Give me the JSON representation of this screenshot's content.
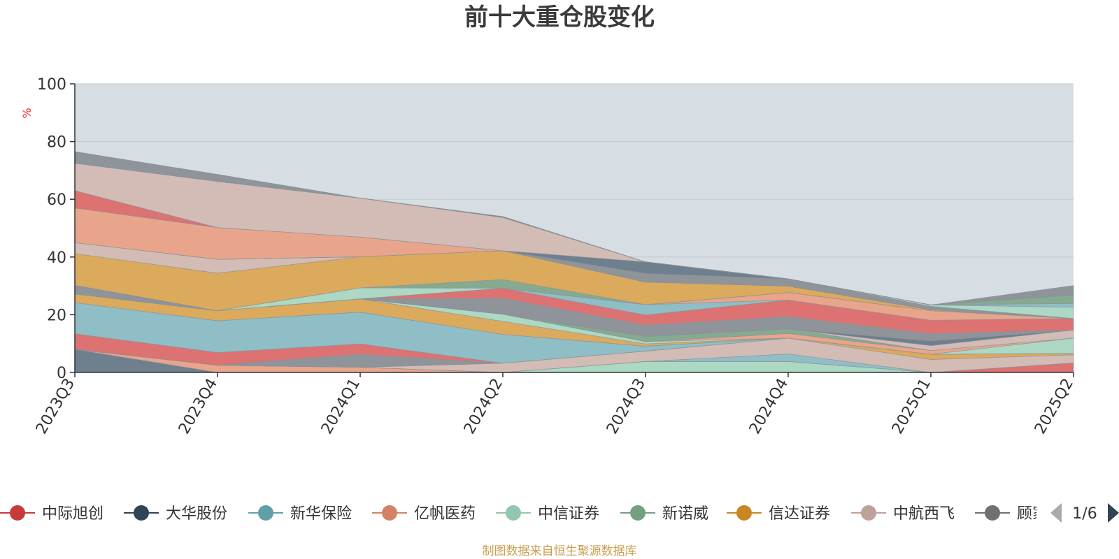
{
  "chart_data": {
    "type": "area",
    "title": "前十大重仓股变化",
    "ylabel": "%",
    "ylim": [
      0,
      100
    ],
    "yticks": [
      0,
      20,
      40,
      60,
      80,
      100
    ],
    "categories": [
      "2023Q3",
      "2023Q4",
      "2024Q1",
      "2024Q2",
      "2024Q3",
      "2024Q4",
      "2025Q1",
      "2025Q2"
    ],
    "grid": true,
    "legend_position": "bottom",
    "series": [
      {
        "name": "大华股份",
        "color": "#6e7f8d",
        "values": [
          8,
          0,
          0,
          0,
          0,
          0,
          0,
          0
        ]
      },
      {
        "name": "亿帆医药",
        "color": "#e9a58b",
        "values": [
          0,
          2.5,
          1.8,
          0,
          0,
          0,
          0,
          0
        ]
      },
      {
        "name": "中信证券",
        "color": "#acd8c4",
        "values": [
          0,
          0,
          0,
          0,
          3.8,
          3.8,
          0,
          0
        ]
      },
      {
        "name": "中际旭创",
        "color": "#dc7272",
        "values": [
          0,
          0,
          0,
          0,
          0,
          0,
          0,
          3.3
        ]
      },
      {
        "name": "新华保险",
        "color": "#8fbec6",
        "values": [
          0,
          0,
          0,
          0,
          0,
          2.6,
          0,
          0
        ]
      },
      {
        "name": "中航西飞",
        "color": "#d3bcb5",
        "values": [
          0,
          0,
          0,
          3.2,
          3.6,
          5.5,
          4.5,
          2.8
        ]
      },
      {
        "name": "信达证券",
        "color": "#dcaa5c",
        "values": [
          0,
          0,
          0,
          0,
          0,
          0,
          1.8,
          0.5
        ]
      },
      {
        "name": "顾家家居",
        "color": "#8e949a",
        "values": [
          0,
          0,
          4.5,
          0,
          0,
          0,
          0,
          0
        ]
      },
      {
        "name": "中际旭创",
        "color": "#dc7272",
        "values": [
          5.4,
          4.4,
          3.6,
          0,
          0,
          0,
          0,
          0
        ]
      },
      {
        "name": "新华保险",
        "color": "#8fbec6",
        "values": [
          10.8,
          11,
          11,
          10,
          1.7,
          0,
          0,
          0
        ]
      },
      {
        "name": "信达证券",
        "color": "#dcaa5c",
        "values": [
          3,
          3.5,
          4.6,
          4.5,
          0.8,
          0,
          0,
          0
        ]
      },
      {
        "name": "中信证券",
        "color": "#acd8c4",
        "values": [
          0,
          0,
          0,
          2.5,
          0.8,
          0,
          0,
          5.3
        ]
      },
      {
        "name": "亿帆医药",
        "color": "#e9a58b",
        "values": [
          0,
          0,
          0,
          0,
          0,
          1.6,
          1.3,
          0
        ]
      },
      {
        "name": "新诺威",
        "color": "#85aa90",
        "values": [
          0,
          0,
          0,
          0,
          1.8,
          1.6,
          0,
          0
        ]
      },
      {
        "name": "中航西飞",
        "color": "#d3bcb5",
        "values": [
          0,
          0,
          0,
          0,
          0,
          0,
          1.7,
          2.8
        ]
      },
      {
        "name": "大华股份",
        "color": "#6e7f8d",
        "values": [
          0,
          0,
          0,
          0,
          0,
          0,
          1.6,
          0
        ]
      },
      {
        "name": "顾家家居",
        "color": "#8e949a",
        "values": [
          3,
          0,
          0,
          5.5,
          3.9,
          4.2,
          2.5,
          0
        ]
      },
      {
        "name": "中际旭创",
        "color": "#dc7272",
        "values": [
          0,
          0,
          0,
          3.5,
          3.5,
          5.8,
          4.7,
          4
        ]
      },
      {
        "name": "新华保险",
        "color": "#8fbec6",
        "values": [
          0,
          0,
          0,
          0,
          3.6,
          0,
          0,
          0
        ]
      },
      {
        "name": "亿帆医药",
        "color": "#e9a58b",
        "values": [
          0,
          0,
          0,
          0,
          0,
          2.6,
          3.3,
          0
        ]
      },
      {
        "name": "中信证券",
        "color": "#acd8c4",
        "values": [
          0,
          0,
          3.8,
          0,
          0,
          0,
          0,
          0
        ]
      },
      {
        "name": "新诺威",
        "color": "#85aa90",
        "values": [
          0,
          0,
          0,
          3,
          0,
          0,
          0,
          0
        ]
      },
      {
        "name": "信达证券",
        "color": "#dcaa5c",
        "values": [
          11,
          13,
          10.8,
          10,
          7.8,
          2.2,
          0.3,
          0
        ]
      },
      {
        "name": "中航西飞",
        "color": "#d3bcb5",
        "values": [
          3.8,
          4.8,
          0,
          0,
          0,
          0,
          0,
          0
        ]
      },
      {
        "name": "顾家家居",
        "color": "#8e949a",
        "values": [
          0,
          0,
          0,
          0,
          3,
          2.5,
          1.2,
          0
        ]
      },
      {
        "name": "中信证券",
        "color": "#acd8c4",
        "values": [
          0,
          0,
          0,
          0,
          0,
          0,
          0.5,
          3.9
        ]
      },
      {
        "name": "新华保险",
        "color": "#8fbec6",
        "values": [
          0,
          0,
          0,
          0,
          0,
          0,
          0,
          1.3
        ]
      },
      {
        "name": "新诺威",
        "color": "#85aa90",
        "values": [
          0,
          0,
          0,
          0,
          0,
          0,
          0,
          3
        ]
      },
      {
        "name": "大华股份",
        "color": "#6e7f8d",
        "values": [
          0,
          0,
          0,
          0,
          4,
          0,
          0,
          0
        ]
      },
      {
        "name": "亿帆医药",
        "color": "#e9a58b",
        "values": [
          12,
          11,
          6.8,
          0,
          0,
          0,
          0,
          0
        ]
      },
      {
        "name": "中际旭创",
        "color": "#dc7272",
        "values": [
          6,
          0,
          0,
          0,
          0,
          0,
          0,
          0
        ]
      },
      {
        "name": "中航西飞",
        "color": "#d3bcb5",
        "values": [
          9.5,
          16,
          13.5,
          11.5,
          0,
          0,
          0,
          0
        ]
      },
      {
        "name": "大华股份",
        "color": "#6e7f8d",
        "values": [
          0,
          0,
          0,
          0.3,
          0,
          0,
          0,
          0
        ]
      },
      {
        "name": "顾家家居",
        "color": "#8e949a",
        "values": [
          4,
          2.4,
          0,
          0,
          0,
          0,
          0,
          0
        ]
      },
      {
        "name": "顾家家居",
        "color": "#8e949a",
        "values": [
          0,
          0,
          0,
          0,
          0,
          0,
          0,
          3.2
        ]
      }
    ],
    "legend": [
      {
        "name": "中际旭创",
        "color": "#c83a3a"
      },
      {
        "name": "大华股份",
        "color": "#2f4454"
      },
      {
        "name": "新华保险",
        "color": "#61a0a8"
      },
      {
        "name": "亿帆医药",
        "color": "#d48265"
      },
      {
        "name": "中信证券",
        "color": "#91c7ae"
      },
      {
        "name": "新诺威",
        "color": "#749f83"
      },
      {
        "name": "信达证券",
        "color": "#ca8622"
      },
      {
        "name": "中航西飞",
        "color": "#bda29a"
      },
      {
        "name": "顾家家居",
        "color": "#6e7074"
      }
    ],
    "legend_page": "1/6"
  },
  "footer": "制图数据来自恒生聚源数据库",
  "colors": {
    "plot_bg": "#d6dde3",
    "grid": "#c2c9d0",
    "axis": "#333333",
    "nav_active": "#2f4454",
    "nav_inactive": "#aaaaaa"
  }
}
